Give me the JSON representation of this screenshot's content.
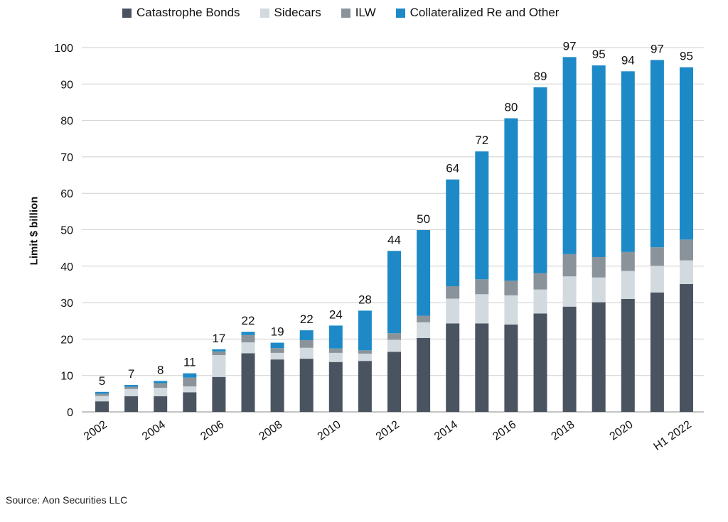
{
  "chart_data": {
    "type": "bar",
    "stacked": true,
    "categories": [
      "2002",
      "2003",
      "2004",
      "2005",
      "2006",
      "2007",
      "2008",
      "2009",
      "2010",
      "2011",
      "2012",
      "2013",
      "2014",
      "2015",
      "2016",
      "2017",
      "2018",
      "2019",
      "2020",
      "2021",
      "H1 2022"
    ],
    "tick_labels": [
      "2002",
      "",
      "2004",
      "",
      "2006",
      "",
      "2008",
      "",
      "2010",
      "",
      "2012",
      "",
      "2014",
      "",
      "2016",
      "",
      "2018",
      "",
      "2020",
      "",
      "H1 2022"
    ],
    "series": [
      {
        "name": "Catastrophe Bonds",
        "color": "#4a5461",
        "values": [
          2.9,
          4.3,
          4.3,
          5.4,
          9.6,
          16.1,
          14.4,
          14.6,
          13.7,
          14.0,
          16.5,
          20.3,
          24.3,
          24.3,
          24.0,
          27.0,
          28.9,
          30.1,
          31.0,
          32.8,
          35.1
        ]
      },
      {
        "name": "Sidecars",
        "color": "#d2dadf",
        "values": [
          1.5,
          2.0,
          2.3,
          1.6,
          6.0,
          3.0,
          1.8,
          3.0,
          2.5,
          2.0,
          3.3,
          4.3,
          6.8,
          8.0,
          8.0,
          6.6,
          8.3,
          6.8,
          7.7,
          7.3,
          6.5
        ]
      },
      {
        "name": "ILW",
        "color": "#8a9399",
        "values": [
          0.6,
          0.6,
          1.3,
          2.4,
          1.0,
          2.0,
          1.3,
          2.1,
          1.2,
          0.9,
          1.8,
          1.8,
          3.4,
          4.1,
          4.0,
          4.5,
          6.1,
          5.6,
          5.2,
          5.1,
          5.7
        ]
      },
      {
        "name": "Collateralized Re and Other",
        "color": "#1d8ac7",
        "values": [
          0.5,
          0.5,
          0.6,
          1.2,
          0.6,
          0.9,
          1.5,
          2.7,
          6.3,
          10.9,
          22.6,
          23.5,
          29.3,
          35.1,
          44.6,
          51.0,
          54.1,
          52.6,
          49.6,
          51.4,
          47.3
        ]
      }
    ],
    "totals_labels": [
      "5",
      "7",
      "8",
      "11",
      "17",
      "22",
      "19",
      "22",
      "24",
      "28",
      "44",
      "50",
      "64",
      "72",
      "80",
      "89",
      "97",
      "95",
      "94",
      "97",
      "95"
    ],
    "ylabel": "Limit $ billion",
    "ylim": [
      0,
      100
    ],
    "yticks": [
      0,
      10,
      20,
      30,
      40,
      50,
      60,
      70,
      80,
      90,
      100
    ],
    "grid": true,
    "legend_position": "top"
  },
  "source": "Source: Aon Securities LLC"
}
